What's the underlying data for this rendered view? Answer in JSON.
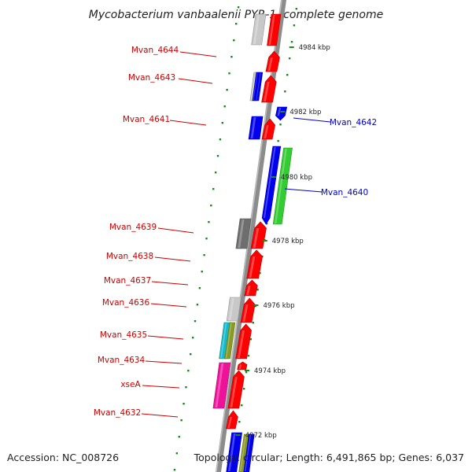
{
  "title": "Mycobacterium vanbaalenii PYR-1, complete genome",
  "accession": "Accession: NC_008726",
  "topology": "Topology: circular; Length: 6,491,865 bp; Genes: 6,037",
  "colors": {
    "background": "#ffffff",
    "backbone": "#8c8c8c",
    "forward_label": "#cc0000",
    "reverse_label": "#0000cc",
    "cds_red": "#ff0000",
    "cds_blue": "#0000ee",
    "cds_green": "#33cc33",
    "tick_green": "#1a8a1a",
    "gray_light": "#c8c8c8",
    "gray_dark": "#6e6e6e",
    "magenta": "#ee1199",
    "cyan": "#11bbcc",
    "olive": "#8a9a22"
  },
  "ticks": [
    {
      "label": "4984 kbp"
    },
    {
      "label": "4982 kbp"
    },
    {
      "label": "4980 kbp"
    },
    {
      "label": "4978 kbp"
    },
    {
      "label": "4976 kbp"
    },
    {
      "label": "4974 kbp"
    },
    {
      "label": "4972 kbp"
    }
  ],
  "forward_labels": [
    {
      "text": "Mvan_4644"
    },
    {
      "text": "Mvan_4643"
    },
    {
      "text": "Mvan_4641"
    },
    {
      "text": "Mvan_4639"
    },
    {
      "text": "Mvan_4638"
    },
    {
      "text": "Mvan_4637"
    },
    {
      "text": "Mvan_4636"
    },
    {
      "text": "Mvan_4635"
    },
    {
      "text": "Mvan_4634"
    },
    {
      "text": "xseA"
    },
    {
      "text": "Mvan_4632"
    }
  ],
  "reverse_labels": [
    {
      "text": "Mvan_4642"
    },
    {
      "text": "Mvan_4640"
    }
  ]
}
